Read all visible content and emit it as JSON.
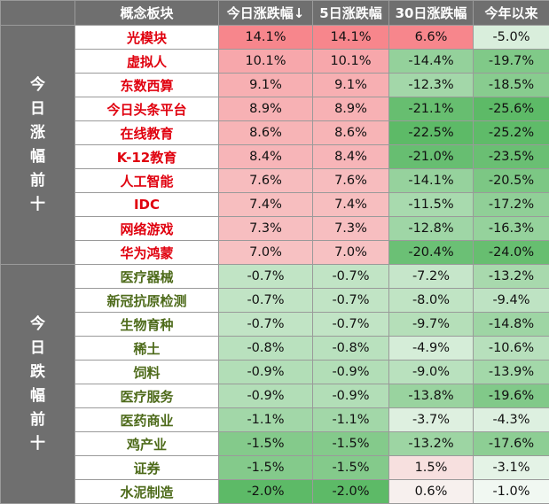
{
  "header": {
    "col_category": "",
    "col_concept": "概念板块",
    "col_today": "今日涨跌幅↓",
    "col_5d": "5日涨跌幅",
    "col_30d": "30日涨跌幅",
    "col_ytd": "今年以来"
  },
  "groups": {
    "top": {
      "label_chars": [
        "今",
        "日",
        "涨",
        "幅",
        "前",
        "十"
      ],
      "rows": [
        {
          "name": "光模块",
          "today": "14.1%",
          "d5": "14.1%",
          "d30": "6.6%",
          "ytd": "-5.0%"
        },
        {
          "name": "虚拟人",
          "today": "10.1%",
          "d5": "10.1%",
          "d30": "-14.4%",
          "ytd": "-19.7%"
        },
        {
          "name": "东数西算",
          "today": "9.1%",
          "d5": "9.1%",
          "d30": "-12.3%",
          "ytd": "-18.5%"
        },
        {
          "name": "今日头条平台",
          "today": "8.9%",
          "d5": "8.9%",
          "d30": "-21.1%",
          "ytd": "-25.6%"
        },
        {
          "name": "在线教育",
          "today": "8.6%",
          "d5": "8.6%",
          "d30": "-22.5%",
          "ytd": "-25.2%"
        },
        {
          "name": "K-12教育",
          "today": "8.4%",
          "d5": "8.4%",
          "d30": "-21.0%",
          "ytd": "-23.5%"
        },
        {
          "name": "人工智能",
          "today": "7.6%",
          "d5": "7.6%",
          "d30": "-14.1%",
          "ytd": "-20.5%"
        },
        {
          "name": "IDC",
          "today": "7.4%",
          "d5": "7.4%",
          "d30": "-11.5%",
          "ytd": "-17.2%"
        },
        {
          "name": "网络游戏",
          "today": "7.3%",
          "d5": "7.3%",
          "d30": "-12.8%",
          "ytd": "-16.3%"
        },
        {
          "name": "华为鸿蒙",
          "today": "7.0%",
          "d5": "7.0%",
          "d30": "-20.4%",
          "ytd": "-24.0%"
        }
      ]
    },
    "bottom": {
      "label_chars": [
        "今",
        "日",
        "跌",
        "幅",
        "前",
        "十"
      ],
      "rows": [
        {
          "name": "医疗器械",
          "today": "-0.7%",
          "d5": "-0.7%",
          "d30": "-7.2%",
          "ytd": "-13.2%"
        },
        {
          "name": "新冠抗原检测",
          "today": "-0.7%",
          "d5": "-0.7%",
          "d30": "-8.0%",
          "ytd": "-9.4%"
        },
        {
          "name": "生物育种",
          "today": "-0.7%",
          "d5": "-0.7%",
          "d30": "-9.7%",
          "ytd": "-14.8%"
        },
        {
          "name": "稀土",
          "today": "-0.8%",
          "d5": "-0.8%",
          "d30": "-4.9%",
          "ytd": "-10.6%"
        },
        {
          "name": "饲料",
          "today": "-0.9%",
          "d5": "-0.9%",
          "d30": "-9.0%",
          "ytd": "-13.9%"
        },
        {
          "name": "医疗服务",
          "today": "-0.9%",
          "d5": "-0.9%",
          "d30": "-13.8%",
          "ytd": "-19.6%"
        },
        {
          "name": "医药商业",
          "today": "-1.1%",
          "d5": "-1.1%",
          "d30": "-3.7%",
          "ytd": "-4.3%"
        },
        {
          "name": "鸡产业",
          "today": "-1.5%",
          "d5": "-1.5%",
          "d30": "-13.2%",
          "ytd": "-17.6%"
        },
        {
          "name": "证券",
          "today": "-1.5%",
          "d5": "-1.5%",
          "d30": "1.5%",
          "ytd": "-3.1%"
        },
        {
          "name": "水泥制造",
          "today": "-2.0%",
          "d5": "-2.0%",
          "d30": "0.6%",
          "ytd": "-1.0%"
        }
      ]
    }
  },
  "colors": {
    "header_bg": "#6f6f6f",
    "header_text": "#ffffff",
    "up_name": "#e0000e",
    "down_name": "#4e6b1b",
    "max_positive": "#f7868c",
    "max_negative": "#5dba67",
    "neutral": "#f7fbf8"
  }
}
